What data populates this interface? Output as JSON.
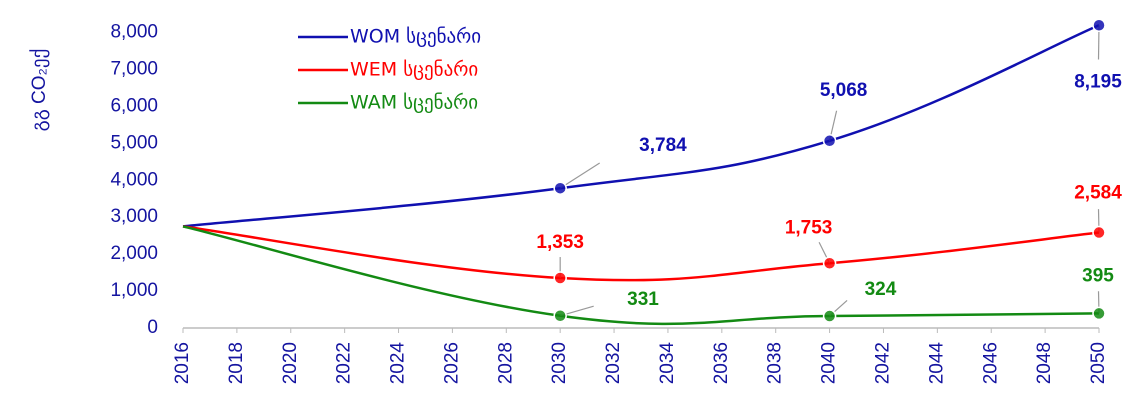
{
  "chart_data": {
    "type": "line",
    "y_label": "გგ CO₂ექ",
    "x": [
      2016,
      2030,
      2040,
      2050
    ],
    "series": [
      {
        "name": "WOM სცენარი",
        "color": "#1010b0",
        "values": [
          2750,
          3784,
          5068,
          8195
        ],
        "value_labels": [
          null,
          "3,784",
          "5,068",
          "8,195"
        ]
      },
      {
        "name": "WEM სცენარი",
        "color": "#ff0000",
        "values": [
          2750,
          1353,
          1753,
          2584
        ],
        "value_labels": [
          null,
          "1,353",
          "1,753",
          "2,584"
        ]
      },
      {
        "name": "WAM სცენარი",
        "color": "#138a13",
        "values": [
          2750,
          331,
          324,
          395
        ],
        "value_labels": [
          null,
          "331",
          "324",
          "395"
        ]
      }
    ],
    "xlim": [
      2016,
      2050
    ],
    "xticks": [
      2016,
      2018,
      2020,
      2022,
      2024,
      2026,
      2028,
      2030,
      2032,
      2034,
      2036,
      2038,
      2040,
      2042,
      2044,
      2046,
      2048,
      2050
    ],
    "ylim": [
      0,
      8500
    ],
    "yticks": [
      0,
      {
        "value": 1000,
        "label": "1,000"
      },
      {
        "value": 2000,
        "label": "2,000"
      },
      {
        "value": 3000,
        "label": "3,000"
      },
      {
        "value": 4000,
        "label": "4,000"
      },
      {
        "value": 5000,
        "label": "5,000"
      },
      {
        "value": 6000,
        "label": "6,000"
      },
      {
        "value": 7000,
        "label": "7,000"
      },
      {
        "value": 8000,
        "label": "8,000"
      }
    ],
    "grid": false,
    "legend": "top-left"
  }
}
